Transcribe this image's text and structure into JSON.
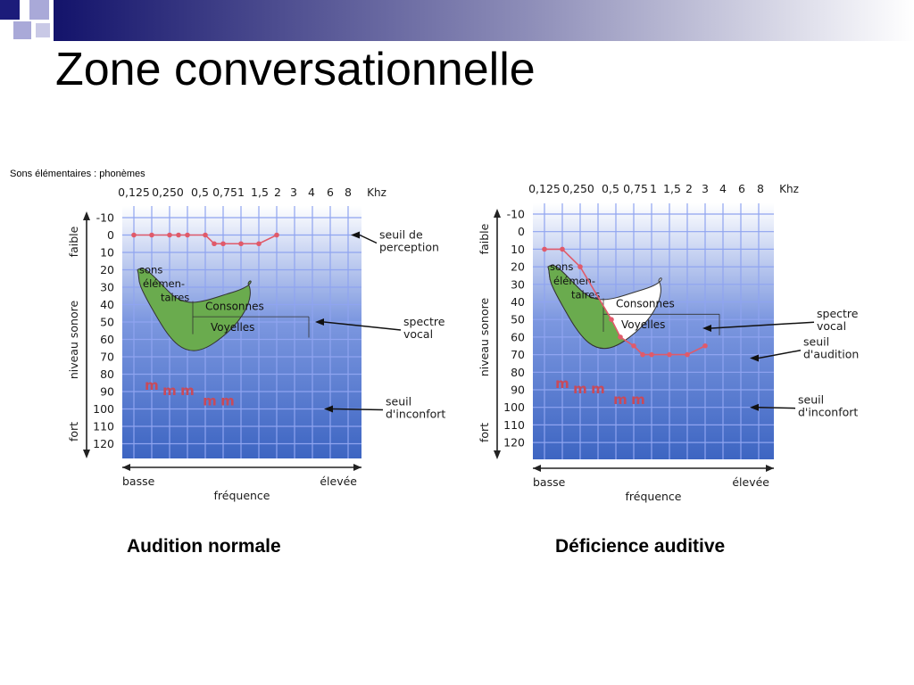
{
  "slide": {
    "title": "Zone conversationnelle",
    "subtitle": "Sons élémentaires : phonèmes"
  },
  "colors": {
    "banner_dark": "#13136b",
    "square_blue": "#1c1c7a",
    "square_light": "#a9a9d8",
    "grid_top": "#ffffff",
    "grid_bottom": "#3d65c2",
    "grid_line": "#8fa4f0",
    "banana_fill": "#6aab4e",
    "threshold_line": "#e05a6a",
    "text_dark": "#1a1a1a"
  },
  "chart_data": [
    {
      "type": "line",
      "caption": "Audition normale",
      "x_ticks": [
        "0,125",
        "0,250",
        "0,5",
        "0,75",
        "1",
        "1,5",
        "2",
        "3",
        "4",
        "6",
        "8"
      ],
      "x_unit": "Khz",
      "y_ticks": [
        "-10",
        "0",
        "10",
        "20",
        "30",
        "40",
        "50",
        "60",
        "70",
        "80",
        "90",
        "100",
        "110",
        "120"
      ],
      "ylim": [
        -10,
        120
      ],
      "y_inverted": true,
      "ylabel": "niveau sonore",
      "y_top_label": "faible",
      "y_bottom_label": "fort",
      "xlabel": "fréquence",
      "x_left_label": "basse",
      "x_right_label": "élevée",
      "threshold": {
        "x_index": [
          0,
          1,
          2,
          2.5,
          3,
          4,
          4.5,
          5,
          6,
          7,
          8
        ],
        "values": [
          0,
          0,
          0,
          0,
          0,
          0,
          5,
          5,
          5,
          5,
          0
        ]
      },
      "discomfort": {
        "x_index": [
          1,
          2,
          3,
          4.25,
          5.25
        ],
        "values": [
          87,
          90,
          90,
          96,
          96
        ],
        "marker": "m"
      },
      "speech_zone": {
        "inner_labels": [
          "sons",
          "élémen-",
          "taires",
          "Consonnes",
          "Voyelles"
        ],
        "level_at_index": [
          [
            0.2,
            20
          ],
          [
            1,
            28
          ],
          [
            2,
            33
          ],
          [
            3,
            35
          ],
          [
            4,
            35
          ],
          [
            5.5,
            33
          ],
          [
            6.5,
            28
          ],
          [
            6,
            50
          ],
          [
            4.5,
            62
          ],
          [
            2,
            58
          ],
          [
            1,
            42
          ],
          [
            0.3,
            27
          ]
        ]
      },
      "annotations": [
        {
          "lines": [
            "seuil de",
            "perception"
          ],
          "target": "threshold"
        },
        {
          "lines": [
            "spectre",
            "vocal"
          ],
          "target": "speech_zone"
        },
        {
          "lines": [
            "seuil",
            "d'inconfort"
          ],
          "target": "discomfort"
        }
      ]
    },
    {
      "type": "line",
      "caption": "Déficience auditive",
      "x_ticks": [
        "0,125",
        "0,250",
        "0,5",
        "0,75",
        "1",
        "1,5",
        "2",
        "3",
        "4",
        "6",
        "8"
      ],
      "x_unit": "Khz",
      "y_ticks": [
        "-10",
        "0",
        "10",
        "20",
        "30",
        "40",
        "50",
        "60",
        "70",
        "80",
        "90",
        "100",
        "110",
        "120"
      ],
      "ylim": [
        -10,
        120
      ],
      "y_inverted": true,
      "ylabel": "niveau sonore",
      "y_top_label": "faible",
      "y_bottom_label": "fort",
      "xlabel": "fréquence",
      "x_left_label": "basse",
      "x_right_label": "élevée",
      "threshold": {
        "x_index": [
          0,
          1,
          2,
          3.75,
          4.25,
          5,
          5.5,
          6,
          7,
          8,
          9
        ],
        "values": [
          10,
          10,
          20,
          50,
          60,
          65,
          70,
          70,
          70,
          70,
          65
        ]
      },
      "discomfort": {
        "x_index": [
          1,
          2,
          3,
          4.25,
          5.25
        ],
        "values": [
          87,
          90,
          90,
          96,
          96
        ],
        "marker": "m"
      },
      "speech_zone": {
        "inner_labels": [
          "sons",
          "élémen-",
          "taires",
          "Consonnes",
          "Voyelles"
        ],
        "level_at_index": [
          [
            0.2,
            20
          ],
          [
            1,
            28
          ],
          [
            2,
            33
          ],
          [
            3,
            35
          ],
          [
            4,
            35
          ],
          [
            5.5,
            33
          ],
          [
            6.5,
            28
          ],
          [
            6,
            50
          ],
          [
            4.5,
            62
          ],
          [
            2,
            58
          ],
          [
            1,
            42
          ],
          [
            0.3,
            27
          ]
        ]
      },
      "annotations": [
        {
          "lines": [
            "spectre",
            "vocal"
          ],
          "target": "speech_zone"
        },
        {
          "lines": [
            "seuil",
            "d'audition"
          ],
          "target": "threshold"
        },
        {
          "lines": [
            "seuil",
            "d'inconfort"
          ],
          "target": "discomfort"
        }
      ]
    }
  ]
}
